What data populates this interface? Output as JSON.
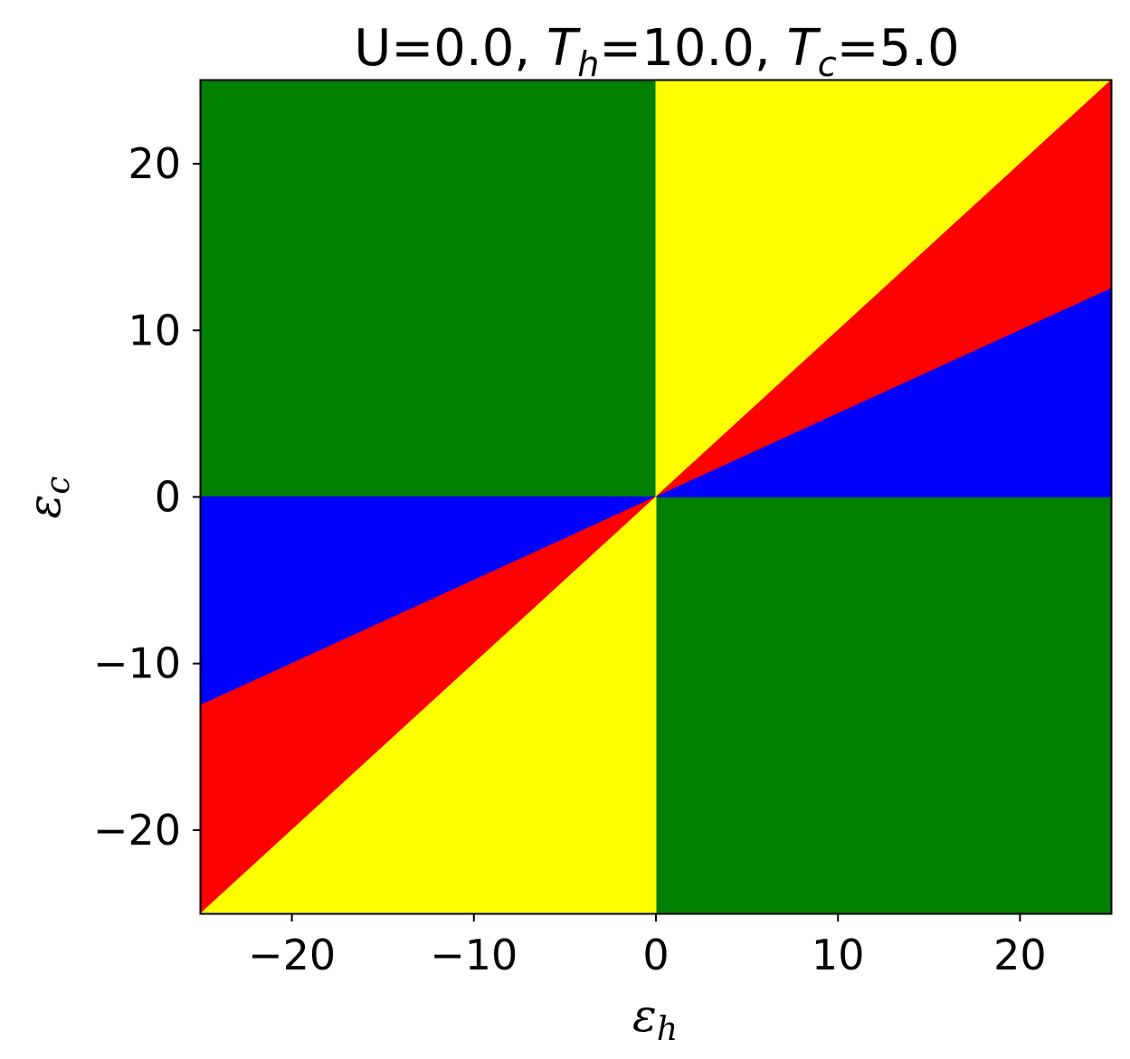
{
  "chart_data": {
    "type": "heatmap",
    "title": {
      "prefix": "U=0.0, ",
      "th_symbol": "T",
      "th_sub": "h",
      "th_value": "=10.0, ",
      "tc_symbol": "T",
      "tc_sub": "c",
      "tc_value": "=5.0"
    },
    "xlabel": {
      "symbol": "ε",
      "sub": "h"
    },
    "ylabel": {
      "symbol": "ε",
      "sub": "c"
    },
    "xlim": [
      -25,
      25
    ],
    "ylim": [
      -25,
      25
    ],
    "xticks": [
      -20,
      -10,
      0,
      10,
      20
    ],
    "yticks": [
      -20,
      -10,
      0,
      10,
      20
    ],
    "xtick_labels": [
      "−20",
      "−10",
      "0",
      "10",
      "20"
    ],
    "ytick_labels": [
      "−20",
      "−10",
      "0",
      "10",
      "20"
    ],
    "grid": false,
    "regions": [
      {
        "color": "#008000",
        "polygon": [
          [
            -25,
            0
          ],
          [
            0,
            0
          ],
          [
            0,
            25
          ],
          [
            -25,
            25
          ]
        ]
      },
      {
        "color": "#008000",
        "polygon": [
          [
            0,
            0
          ],
          [
            25,
            0
          ],
          [
            25,
            -25
          ],
          [
            0,
            -25
          ]
        ]
      },
      {
        "color": "#ffff00",
        "polygon": [
          [
            0,
            0
          ],
          [
            25,
            25
          ],
          [
            0,
            25
          ]
        ]
      },
      {
        "color": "#ff0000",
        "polygon": [
          [
            0,
            0
          ],
          [
            25,
            25
          ],
          [
            25,
            12.5
          ]
        ]
      },
      {
        "color": "#0000ff",
        "polygon": [
          [
            0,
            0
          ],
          [
            25,
            12.5
          ],
          [
            25,
            0
          ]
        ]
      },
      {
        "color": "#0000ff",
        "polygon": [
          [
            -25,
            0
          ],
          [
            0,
            0
          ],
          [
            -25,
            -12.5
          ]
        ]
      },
      {
        "color": "#ff0000",
        "polygon": [
          [
            -25,
            -12.5
          ],
          [
            0,
            0
          ],
          [
            -25,
            -25
          ]
        ]
      },
      {
        "color": "#ffff00",
        "polygon": [
          [
            -25,
            -25
          ],
          [
            0,
            0
          ],
          [
            0,
            -25
          ]
        ]
      }
    ]
  }
}
